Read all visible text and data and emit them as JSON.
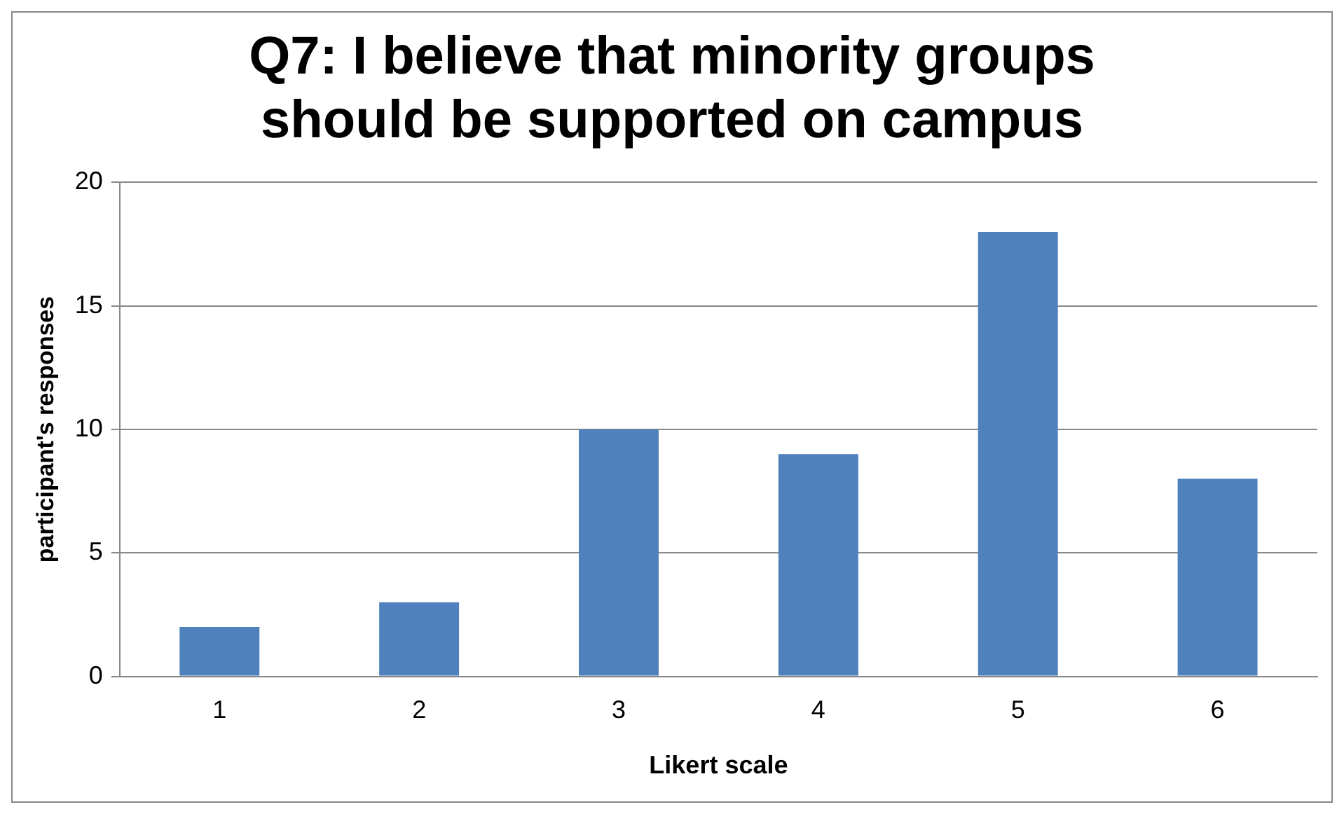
{
  "chart_data": {
    "type": "bar",
    "title": "Q7: I believe that minority groups should be supported on campus",
    "xlabel": "Likert scale",
    "ylabel": "participant's responses",
    "categories": [
      "1",
      "2",
      "3",
      "4",
      "5",
      "6"
    ],
    "values": [
      2,
      3,
      10,
      9,
      18,
      8
    ],
    "color": "#4f81bd",
    "ylim": [
      0,
      20
    ],
    "yticks": [
      0,
      5,
      10,
      15,
      20
    ],
    "grid": "y",
    "legend": false
  }
}
